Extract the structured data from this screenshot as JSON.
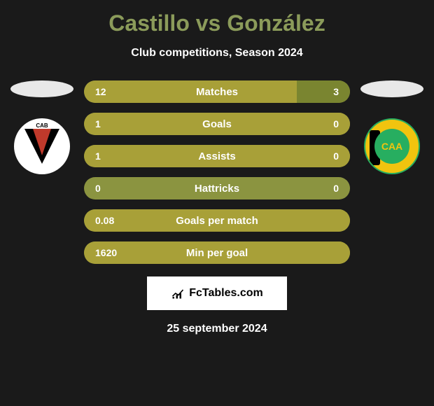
{
  "title": "Castillo vs González",
  "subtitle": "Club competitions, Season 2024",
  "date": "25 september 2024",
  "brand": {
    "text": "FcTables.com",
    "icon_color": "#000000"
  },
  "colors": {
    "title": "#8b9b5a",
    "bar_base": "#8b9440",
    "bar_left": "#a8a038",
    "bar_right": "#7a8530",
    "bg": "#1a1a1a"
  },
  "team_left": {
    "ellipse_color": "#e8e8e8",
    "badge_label": "CAB"
  },
  "team_right": {
    "ellipse_color": "#e8e8e8",
    "badge_label": "CAA"
  },
  "stats": [
    {
      "label": "Matches",
      "left_val": "12",
      "right_val": "3",
      "left_pct": 80,
      "right_pct": 20
    },
    {
      "label": "Goals",
      "left_val": "1",
      "right_val": "0",
      "left_pct": 100,
      "right_pct": 0
    },
    {
      "label": "Assists",
      "left_val": "1",
      "right_val": "0",
      "left_pct": 100,
      "right_pct": 0
    },
    {
      "label": "Hattricks",
      "left_val": "0",
      "right_val": "0",
      "left_pct": 0,
      "right_pct": 0
    },
    {
      "label": "Goals per match",
      "left_val": "0.08",
      "right_val": "",
      "left_pct": 100,
      "right_pct": 0
    },
    {
      "label": "Min per goal",
      "left_val": "1620",
      "right_val": "",
      "left_pct": 100,
      "right_pct": 0
    }
  ]
}
